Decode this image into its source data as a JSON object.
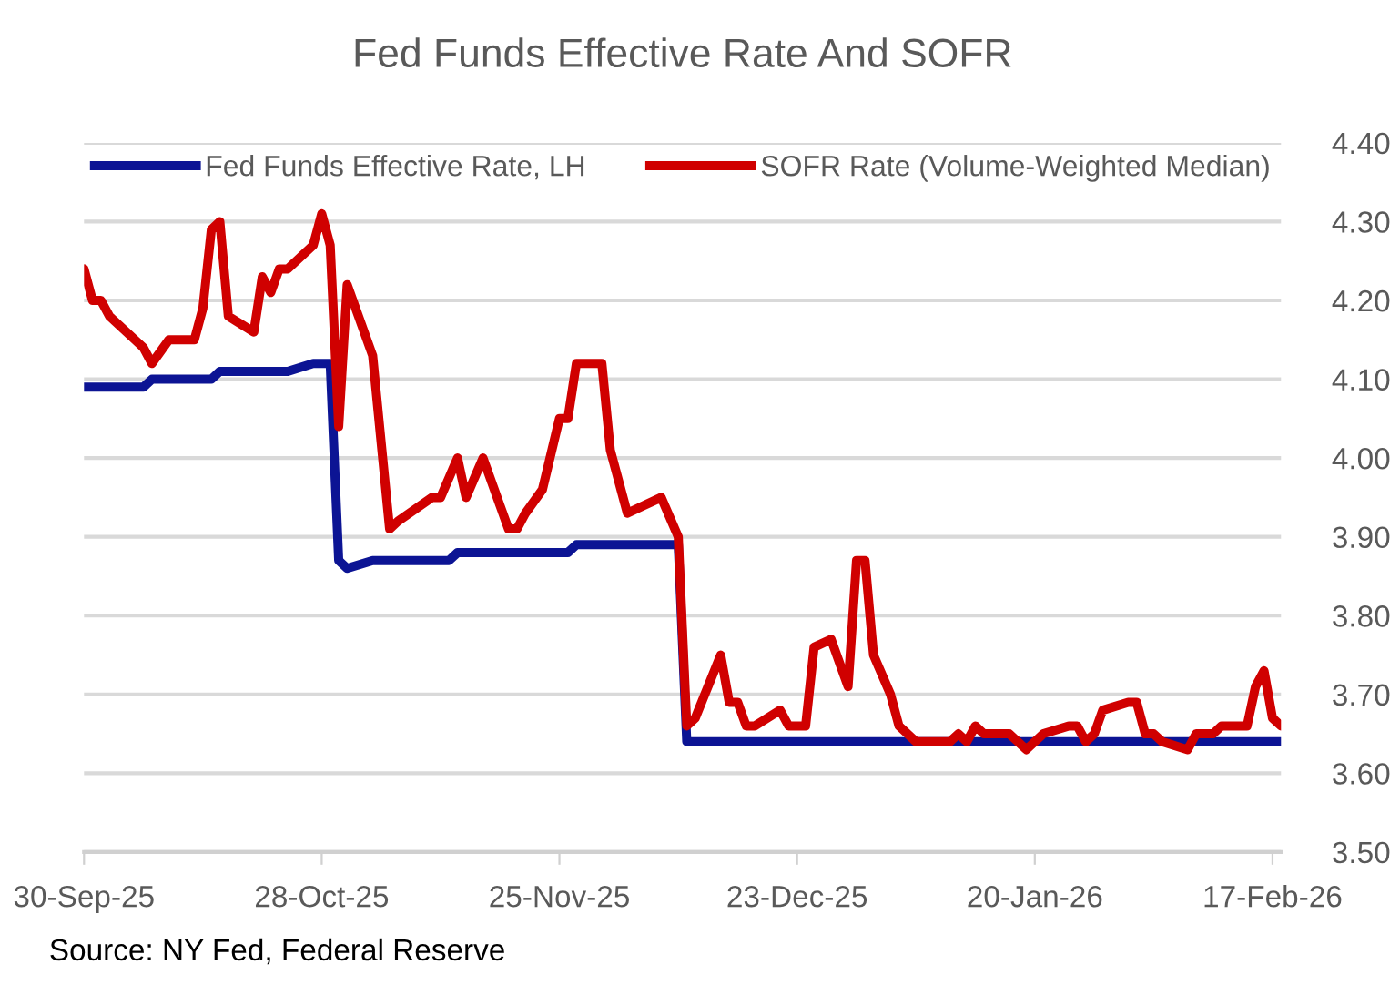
{
  "chart_data": {
    "type": "line",
    "title": "Fed Funds Effective Rate And SOFR",
    "xlim": [
      "2025-09-30",
      "2026-02-18"
    ],
    "xticks": [
      {
        "value": "2025-09-30",
        "label": "30-Sep-25"
      },
      {
        "value": "2025-10-28",
        "label": "28-Oct-25"
      },
      {
        "value": "2025-11-25",
        "label": "25-Nov-25"
      },
      {
        "value": "2025-12-23",
        "label": "23-Dec-25"
      },
      {
        "value": "2026-01-20",
        "label": "20-Jan-26"
      },
      {
        "value": "2026-02-17",
        "label": "17-Feb-26"
      }
    ],
    "ylim": [
      3.5,
      4.4
    ],
    "yticks": [
      {
        "value": 3.5,
        "label": "3.50"
      },
      {
        "value": 3.6,
        "label": "3.60"
      },
      {
        "value": 3.7,
        "label": "3.70"
      },
      {
        "value": 3.8,
        "label": "3.80"
      },
      {
        "value": 3.9,
        "label": "3.90"
      },
      {
        "value": 4.0,
        "label": "4.00"
      },
      {
        "value": 4.1,
        "label": "4.10"
      },
      {
        "value": 4.2,
        "label": "4.20"
      },
      {
        "value": 4.3,
        "label": "4.30"
      },
      {
        "value": 4.4,
        "label": "4.40"
      }
    ],
    "grid": "y",
    "legend": "top",
    "line_style": "solid",
    "marker": "none",
    "annotations": [
      "Source: NY Fed, Federal Reserve"
    ],
    "series": [
      {
        "name": "Fed Funds Effective Rate, LH",
        "color": "#0c1494",
        "x": [
          "2025-09-30",
          "2025-10-07",
          "2025-10-08",
          "2025-10-15",
          "2025-10-16",
          "2025-10-23",
          "2025-10-24",
          "2025-10-27",
          "2025-10-29",
          "2025-10-30",
          "2025-10-31",
          "2025-11-03",
          "2025-11-12",
          "2025-11-13",
          "2025-11-26",
          "2025-11-27",
          "2025-12-09",
          "2025-12-10",
          "2026-02-18"
        ],
        "values": [
          4.09,
          4.09,
          4.1,
          4.1,
          4.11,
          4.11,
          4.11,
          4.12,
          4.12,
          3.87,
          3.86,
          3.87,
          3.87,
          3.88,
          3.88,
          3.89,
          3.89,
          3.64,
          3.64
        ]
      },
      {
        "name": "SOFR Rate (Volume-Weighted Median)",
        "color": "#d00000",
        "x": [
          "2025-09-30",
          "2025-10-01",
          "2025-10-02",
          "2025-10-03",
          "2025-10-07",
          "2025-10-08",
          "2025-10-10",
          "2025-10-13",
          "2025-10-14",
          "2025-10-15",
          "2025-10-16",
          "2025-10-17",
          "2025-10-20",
          "2025-10-21",
          "2025-10-22",
          "2025-10-23",
          "2025-10-24",
          "2025-10-27",
          "2025-10-28",
          "2025-10-29",
          "2025-10-30",
          "2025-10-31",
          "2025-11-03",
          "2025-11-05",
          "2025-11-06",
          "2025-11-10",
          "2025-11-11",
          "2025-11-13",
          "2025-11-14",
          "2025-11-16",
          "2025-11-18",
          "2025-11-19",
          "2025-11-20",
          "2025-11-21",
          "2025-11-23",
          "2025-11-25",
          "2025-11-26",
          "2025-11-27",
          "2025-11-30",
          "2025-12-01",
          "2025-12-03",
          "2025-12-05",
          "2025-12-07",
          "2025-12-09",
          "2025-12-10",
          "2025-12-11",
          "2025-12-14",
          "2025-12-15",
          "2025-12-16",
          "2025-12-17",
          "2025-12-18",
          "2025-12-21",
          "2025-12-22",
          "2025-12-24",
          "2025-12-25",
          "2025-12-27",
          "2025-12-29",
          "2025-12-30",
          "2025-12-31",
          "2026-01-01",
          "2026-01-03",
          "2026-01-04",
          "2026-01-06",
          "2026-01-10",
          "2026-01-11",
          "2026-01-12",
          "2026-01-13",
          "2026-01-14",
          "2026-01-17",
          "2026-01-19",
          "2026-01-21",
          "2026-01-24",
          "2026-01-25",
          "2026-01-26",
          "2026-01-27",
          "2026-01-28",
          "2026-01-31",
          "2026-02-01",
          "2026-02-02",
          "2026-02-03",
          "2026-02-04",
          "2026-02-07",
          "2026-02-08",
          "2026-02-10",
          "2026-02-11",
          "2026-02-14",
          "2026-02-15",
          "2026-02-16",
          "2026-02-17",
          "2026-02-18"
        ],
        "values": [
          4.24,
          4.2,
          4.2,
          4.18,
          4.14,
          4.12,
          4.15,
          4.15,
          4.19,
          4.29,
          4.3,
          4.18,
          4.16,
          4.23,
          4.21,
          4.24,
          4.24,
          4.27,
          4.31,
          4.27,
          4.04,
          4.22,
          4.13,
          3.91,
          3.92,
          3.95,
          3.95,
          4.0,
          3.95,
          4.0,
          3.94,
          3.91,
          3.91,
          3.93,
          3.96,
          4.05,
          4.05,
          4.12,
          4.12,
          4.01,
          3.93,
          3.94,
          3.95,
          3.9,
          3.66,
          3.67,
          3.75,
          3.69,
          3.69,
          3.66,
          3.66,
          3.68,
          3.66,
          3.66,
          3.76,
          3.77,
          3.71,
          3.87,
          3.87,
          3.75,
          3.7,
          3.66,
          3.64,
          3.64,
          3.65,
          3.64,
          3.66,
          3.65,
          3.65,
          3.63,
          3.65,
          3.66,
          3.66,
          3.64,
          3.65,
          3.68,
          3.69,
          3.69,
          3.65,
          3.65,
          3.64,
          3.63,
          3.65,
          3.65,
          3.66,
          3.66,
          3.71,
          3.73,
          3.67,
          3.66
        ]
      }
    ]
  }
}
